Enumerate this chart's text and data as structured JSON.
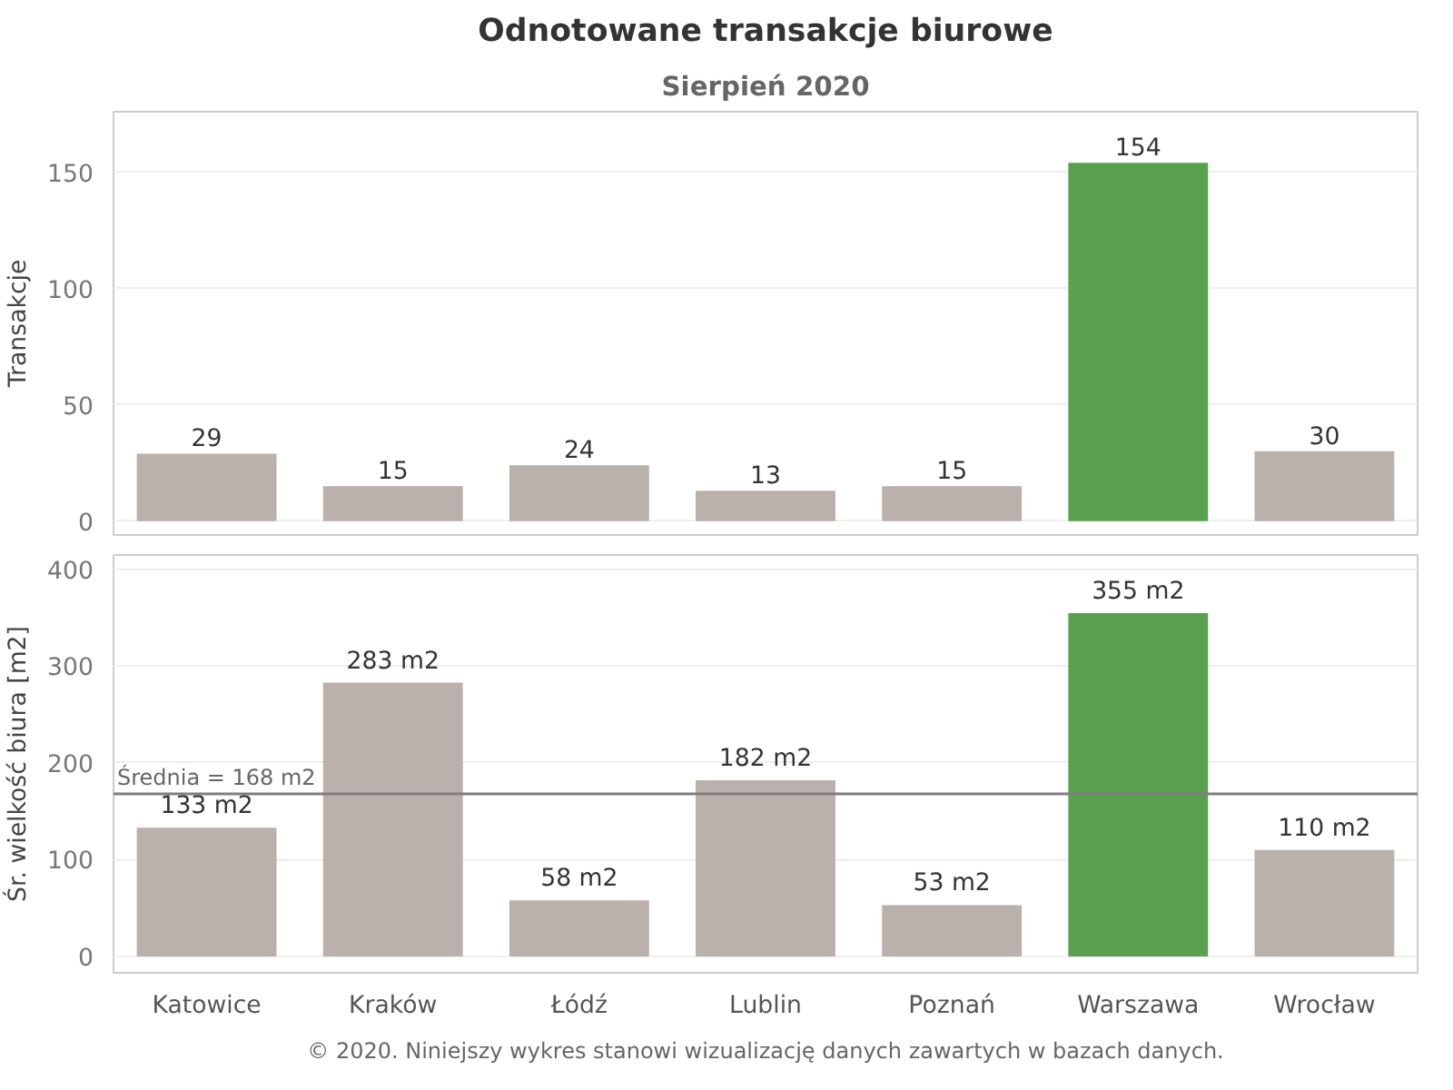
{
  "chart_data": [
    {
      "type": "bar",
      "title": "Odnotowane transakcje biurowe",
      "subtitle": "Sierpień 2020",
      "ylabel": "Transakcje",
      "categories": [
        null,
        null,
        null,
        null,
        null,
        null,
        null
      ],
      "values": [
        29,
        15,
        24,
        13,
        15,
        154,
        30
      ],
      "colors": [
        "#bab0ac",
        "#bab0ac",
        "#bab0ac",
        "#bab0ac",
        "#bab0ac",
        "#59a14f",
        "#bab0ac"
      ],
      "ylim": [
        -6,
        176
      ],
      "yticks": [
        0,
        50,
        100,
        150
      ],
      "grid": "y",
      "data_labels": true,
      "tick_labels": "y"
    },
    {
      "type": "bar",
      "ylabel": "Śr. wielkość biura [m2]",
      "categories": [
        "Katowice",
        "Kraków",
        "Łódź",
        "Lublin",
        "Poznań",
        "Warszawa",
        "Wrocław"
      ],
      "values": [
        133,
        283,
        58,
        182,
        53,
        355,
        110
      ],
      "value_labels": [
        "133 m2",
        "283 m2",
        "58 m2",
        "182 m2",
        "53 m2",
        "355 m2",
        "110 m2"
      ],
      "colors": [
        "#bab0ac",
        "#bab0ac",
        "#bab0ac",
        "#bab0ac",
        "#bab0ac",
        "#59a14f",
        "#bab0ac"
      ],
      "ylim": [
        -17,
        415
      ],
      "yticks": [
        0,
        100,
        200,
        300,
        400
      ],
      "grid": "y",
      "ref_lines": [
        {
          "axis": "y",
          "value": 168,
          "label": "Średnia = 168 m2",
          "color": "#7f7f7f"
        }
      ],
      "annotations": [
        "© 2020. Niniejszy wykres stanowi wizualizację danych zawartych w bazach danych."
      ]
    }
  ]
}
